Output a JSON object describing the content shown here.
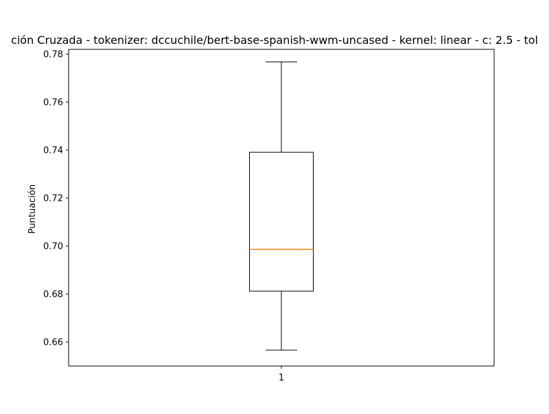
{
  "chart_data": {
    "type": "boxplot",
    "title": "ción Cruzada - tokenizer: dccuchile/bert-base-spanish-wwm-uncased - kernel: linear - c: 2.5 - tol",
    "xlabel": "",
    "ylabel": "Puntuación",
    "ylim": [
      0.65,
      0.782
    ],
    "yticks": [
      0.66,
      0.68,
      0.7,
      0.72,
      0.74,
      0.76,
      0.78
    ],
    "ytick_labels": [
      "0.66",
      "0.68",
      "0.70",
      "0.72",
      "0.74",
      "0.76",
      "0.78"
    ],
    "xticks": [
      1
    ],
    "xtick_labels": [
      "1"
    ],
    "grid": false,
    "boxes": [
      {
        "x": 1,
        "whisker_low": 0.6566,
        "q1": 0.6812,
        "median": 0.6986,
        "q3": 0.7391,
        "whisker_high": 0.7768
      }
    ],
    "colors": {
      "box": "#000000",
      "median": "#ff7f0e",
      "whisker": "#000000"
    }
  }
}
